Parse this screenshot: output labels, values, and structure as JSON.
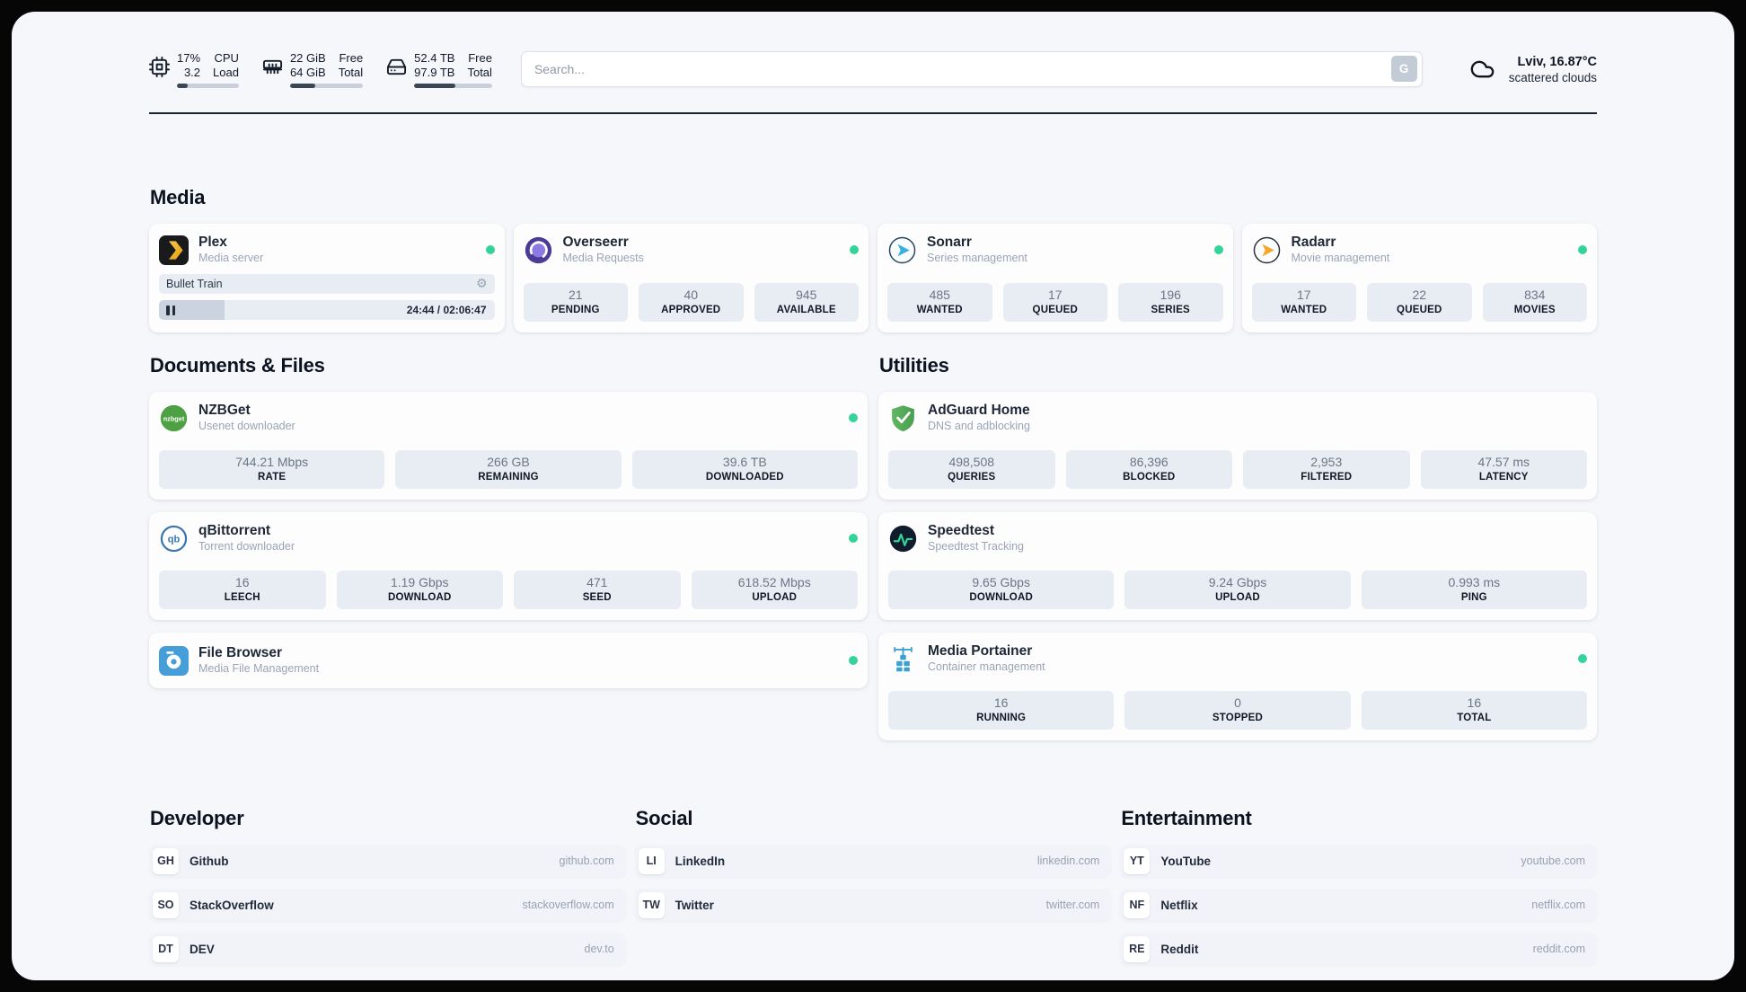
{
  "colors": {
    "status_online": "#34d399",
    "header_bar_fill": "#3a4656",
    "stat_block_bg": "#e8ecf3"
  },
  "icons": {
    "gear": "⚙",
    "nzbget_logo_text": "nzbget",
    "qbittorrent_logo_text": "qb"
  },
  "header": {
    "cpu": {
      "usage": "17%",
      "usage_label": "CPU",
      "load": "3.2",
      "load_label": "Load",
      "progress": 17
    },
    "memory": {
      "free": "22 GiB",
      "free_label": "Free",
      "total": "64 GiB",
      "total_label": "Total",
      "progress": 34
    },
    "disk": {
      "free": "52.4 TB",
      "free_label": "Free",
      "total": "97.9 TB",
      "total_label": "Total",
      "progress": 53
    },
    "search": {
      "placeholder": "Search...",
      "button_label": "G"
    },
    "weather": {
      "location": "Lviv, 16.87°C",
      "condition": "scattered clouds"
    }
  },
  "media": {
    "title": "Media",
    "plex": {
      "name": "Plex",
      "description": "Media server",
      "now_playing": "Bullet Train",
      "time": "24:44 / 02:06:47",
      "progress_percent": 19.5
    },
    "overseerr": {
      "name": "Overseerr",
      "description": "Media Requests",
      "stats": [
        {
          "value": "21",
          "label": "PENDING"
        },
        {
          "value": "40",
          "label": "APPROVED"
        },
        {
          "value": "945",
          "label": "AVAILABLE"
        }
      ]
    },
    "sonarr": {
      "name": "Sonarr",
      "description": "Series management",
      "stats": [
        {
          "value": "485",
          "label": "WANTED"
        },
        {
          "value": "17",
          "label": "QUEUED"
        },
        {
          "value": "196",
          "label": "SERIES"
        }
      ]
    },
    "radarr": {
      "name": "Radarr",
      "description": "Movie management",
      "stats": [
        {
          "value": "17",
          "label": "WANTED"
        },
        {
          "value": "22",
          "label": "QUEUED"
        },
        {
          "value": "834",
          "label": "MOVIES"
        }
      ]
    }
  },
  "files": {
    "title": "Documents & Files",
    "nzbget": {
      "name": "NZBGet",
      "description": "Usenet downloader",
      "stats": [
        {
          "value": "744.21 Mbps",
          "label": "RATE"
        },
        {
          "value": "266 GB",
          "label": "REMAINING"
        },
        {
          "value": "39.6 TB",
          "label": "DOWNLOADED"
        }
      ]
    },
    "qbittorrent": {
      "name": "qBittorrent",
      "description": "Torrent downloader",
      "stats": [
        {
          "value": "16",
          "label": "LEECH"
        },
        {
          "value": "1.19 Gbps",
          "label": "DOWNLOAD"
        },
        {
          "value": "471",
          "label": "SEED"
        },
        {
          "value": "618.52 Mbps",
          "label": "UPLOAD"
        }
      ]
    },
    "filebrowser": {
      "name": "File Browser",
      "description": "Media File Management"
    }
  },
  "utilities": {
    "title": "Utilities",
    "adguard": {
      "name": "AdGuard Home",
      "description": "DNS and adblocking",
      "stats": [
        {
          "value": "498,508",
          "label": "QUERIES"
        },
        {
          "value": "86,396",
          "label": "BLOCKED"
        },
        {
          "value": "2,953",
          "label": "FILTERED"
        },
        {
          "value": "47.57 ms",
          "label": "LATENCY"
        }
      ]
    },
    "speedtest": {
      "name": "Speedtest",
      "description": "Speedtest Tracking",
      "stats": [
        {
          "value": "9.65 Gbps",
          "label": "DOWNLOAD"
        },
        {
          "value": "9.24 Gbps",
          "label": "UPLOAD"
        },
        {
          "value": "0.993 ms",
          "label": "PING"
        }
      ]
    },
    "portainer": {
      "name": "Media Portainer",
      "description": "Container management",
      "stats": [
        {
          "value": "16",
          "label": "RUNNING"
        },
        {
          "value": "0",
          "label": "STOPPED"
        },
        {
          "value": "16",
          "label": "TOTAL"
        }
      ]
    }
  },
  "bookmarks": {
    "developer": {
      "title": "Developer",
      "items": [
        {
          "abbr": "GH",
          "name": "Github",
          "url": "github.com"
        },
        {
          "abbr": "SO",
          "name": "StackOverflow",
          "url": "stackoverflow.com"
        },
        {
          "abbr": "DT",
          "name": "DEV",
          "url": "dev.to"
        }
      ]
    },
    "social": {
      "title": "Social",
      "items": [
        {
          "abbr": "LI",
          "name": "LinkedIn",
          "url": "linkedin.com"
        },
        {
          "abbr": "TW",
          "name": "Twitter",
          "url": "twitter.com"
        }
      ]
    },
    "entertainment": {
      "title": "Entertainment",
      "items": [
        {
          "abbr": "YT",
          "name": "YouTube",
          "url": "youtube.com"
        },
        {
          "abbr": "NF",
          "name": "Netflix",
          "url": "netflix.com"
        },
        {
          "abbr": "RE",
          "name": "Reddit",
          "url": "reddit.com"
        }
      ]
    }
  }
}
